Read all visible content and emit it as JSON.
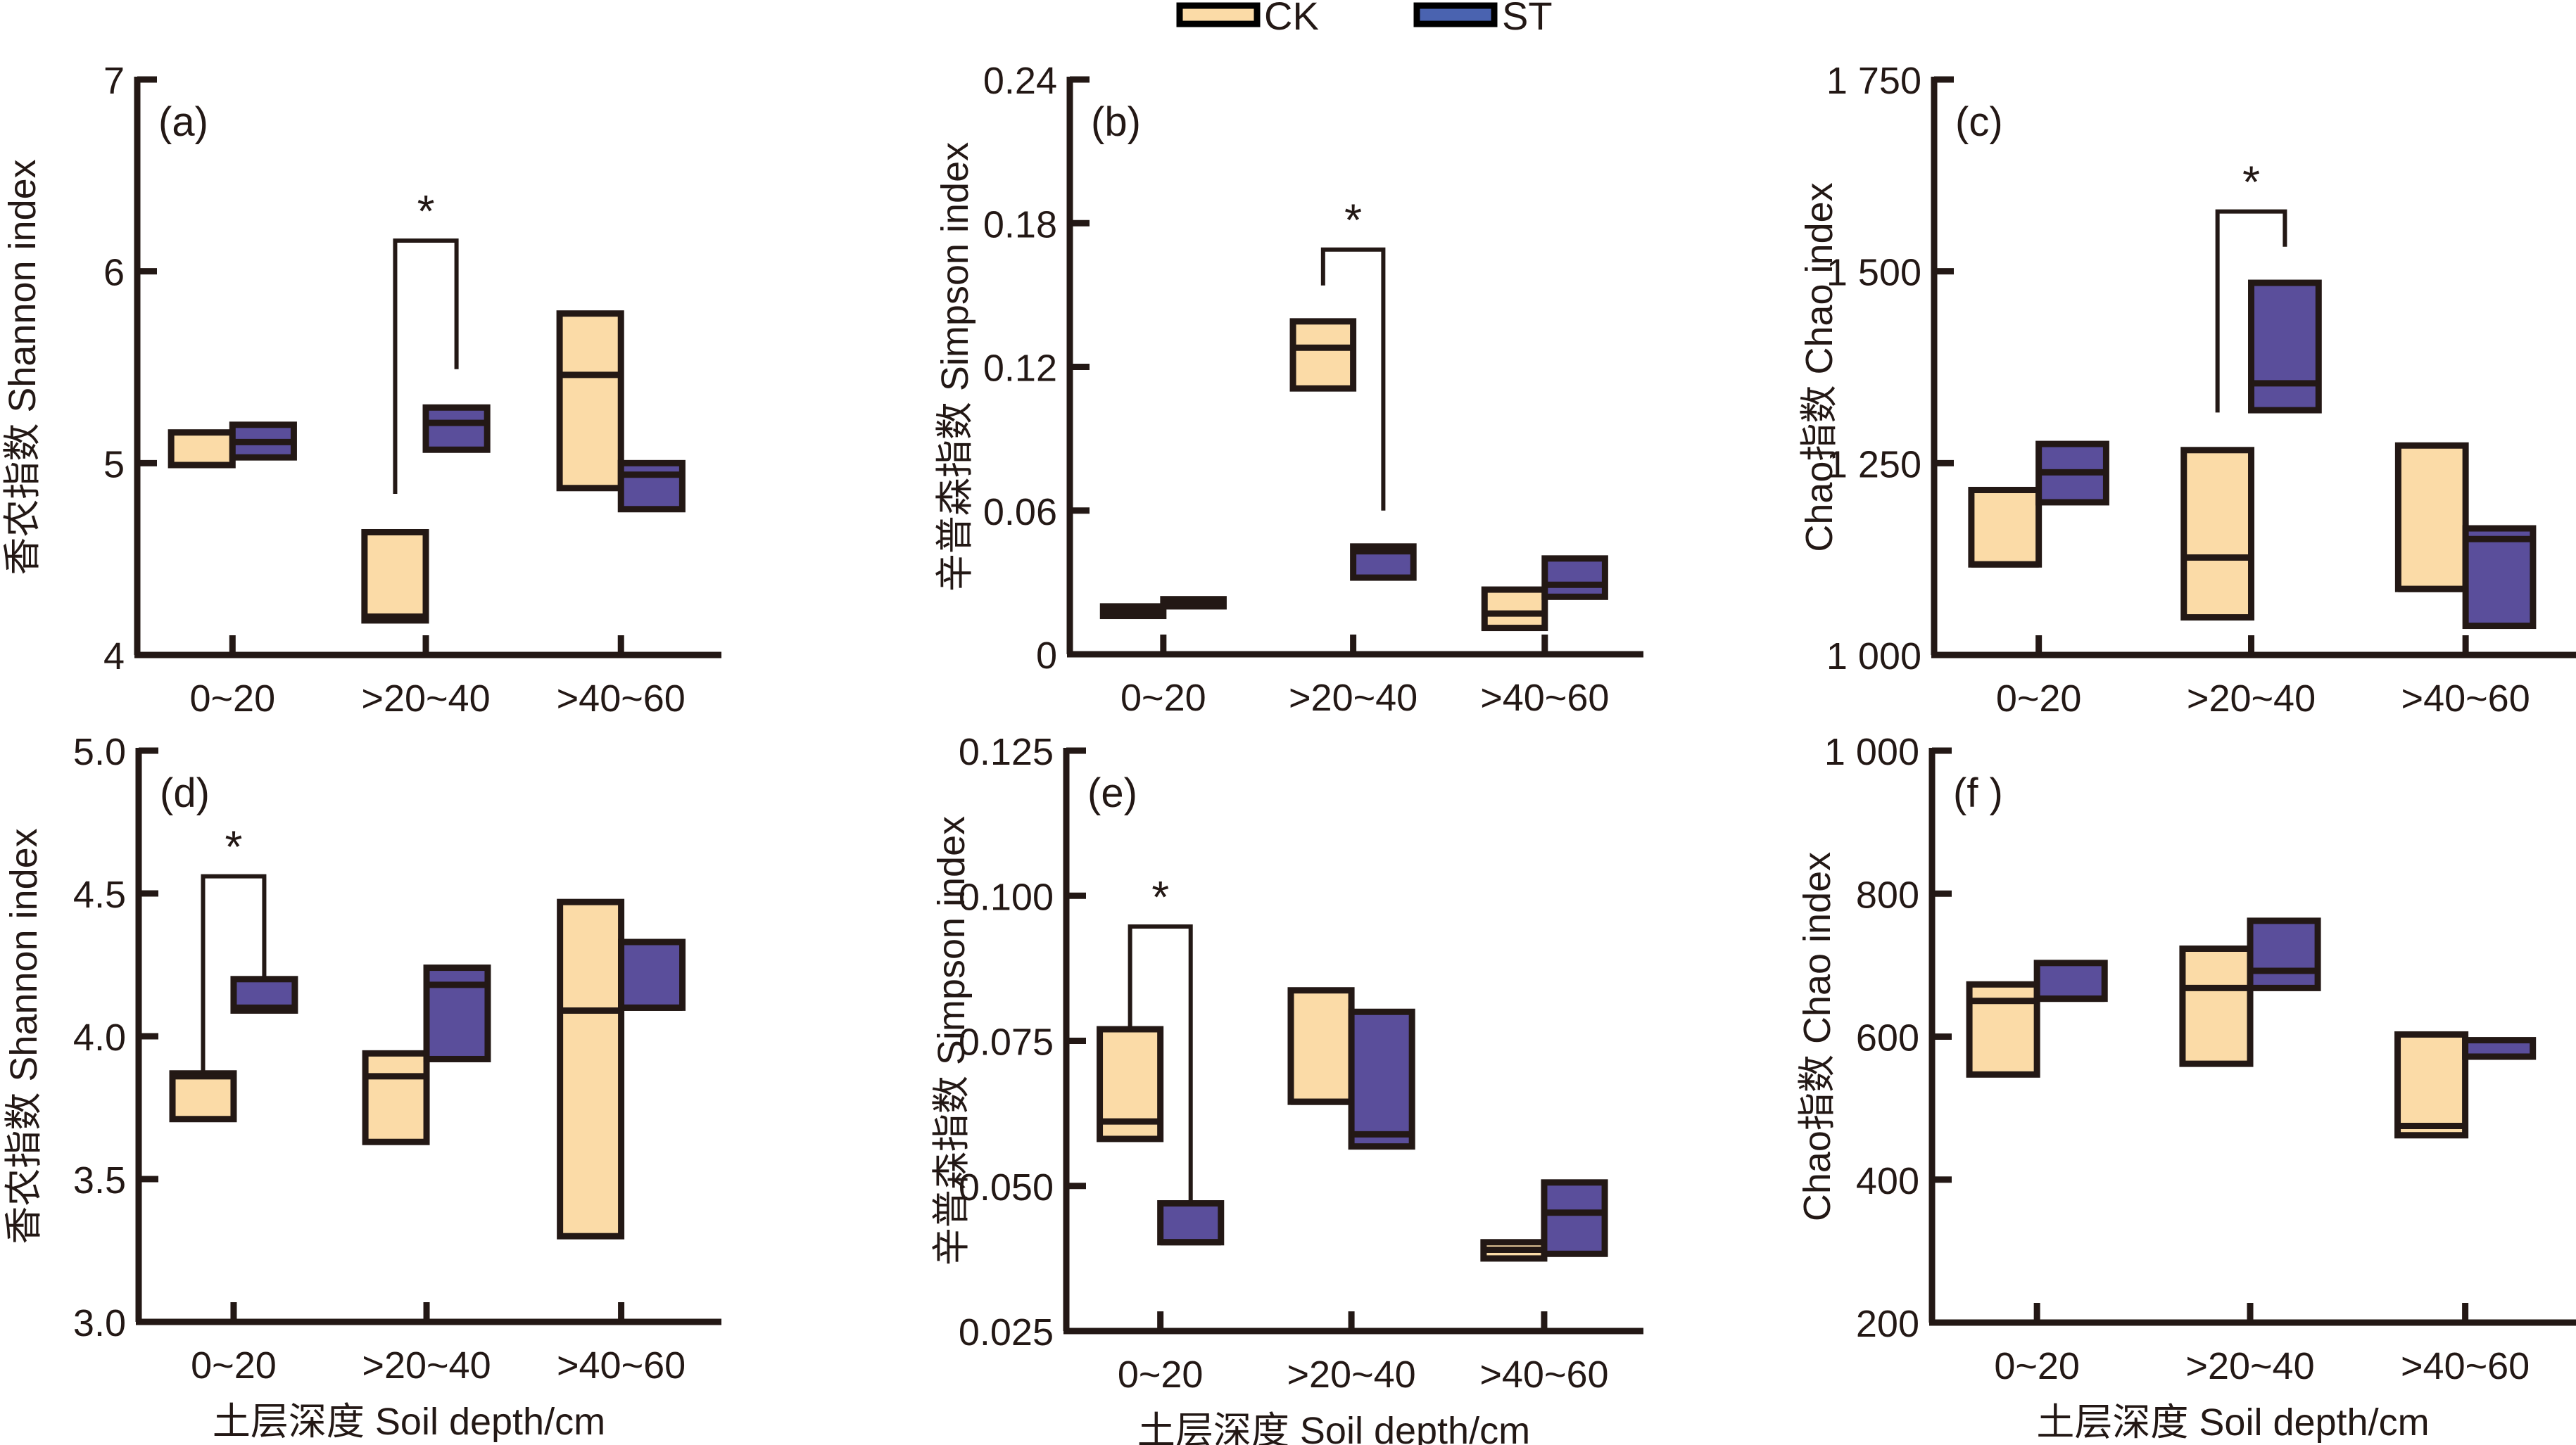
{
  "legend": {
    "items": [
      {
        "label": "CK",
        "fill": "#fbdba7"
      },
      {
        "label": "ST",
        "fill": "#4a63b0"
      }
    ]
  },
  "colors": {
    "ck": "#fbdba7",
    "st": "#5a4e9b",
    "ink": "#231815"
  },
  "chart_data": [
    {
      "panel": "(a)",
      "type": "box",
      "ylabel": "香农指数 Shannon index",
      "xlabel": "",
      "categories": [
        "0~20",
        ">20~40",
        ">40~60"
      ],
      "ylim": [
        4,
        7
      ],
      "yticks": [
        4,
        5,
        6,
        7
      ],
      "ytick_labels": [
        "4",
        "5",
        "6",
        "7"
      ],
      "series": [
        {
          "name": "CK",
          "boxes": [
            {
              "low": 4.99,
              "high": 5.16,
              "median": 4.99
            },
            {
              "low": 4.18,
              "high": 4.64,
              "median": 4.2
            },
            {
              "low": 4.87,
              "high": 5.78,
              "median": 5.46
            }
          ]
        },
        {
          "name": "ST",
          "boxes": [
            {
              "low": 5.03,
              "high": 5.2,
              "median": 5.11
            },
            {
              "low": 5.07,
              "high": 5.29,
              "median": 5.21
            },
            {
              "low": 4.76,
              "high": 5.0,
              "median": 4.94
            }
          ]
        }
      ],
      "significance": [
        {
          "category": ">20~40",
          "label": "*",
          "left_y": 4.84,
          "top_y": 6.16,
          "right_y": 5.49
        }
      ]
    },
    {
      "panel": "(b)",
      "type": "box",
      "ylabel": "辛普森指数 Simpson index",
      "xlabel": "",
      "categories": [
        "0~20",
        ">20~40",
        ">40~60"
      ],
      "ylim": [
        0,
        0.24
      ],
      "yticks": [
        0,
        0.06,
        0.12,
        0.18,
        0.24
      ],
      "ytick_labels": [
        "0",
        "0.06",
        "0.12",
        "0.18",
        "0.24"
      ],
      "series": [
        {
          "name": "CK",
          "boxes": [
            {
              "low": 0.016,
              "high": 0.02,
              "median": 0.018
            },
            {
              "low": 0.111,
              "high": 0.139,
              "median": 0.128
            },
            {
              "low": 0.011,
              "high": 0.027,
              "median": 0.017
            }
          ]
        },
        {
          "name": "ST",
          "boxes": [
            {
              "low": 0.02,
              "high": 0.023,
              "median": 0.0215
            },
            {
              "low": 0.032,
              "high": 0.045,
              "median": 0.043
            },
            {
              "low": 0.024,
              "high": 0.04,
              "median": 0.029
            }
          ]
        }
      ],
      "significance": [
        {
          "category": ">20~40",
          "label": "*",
          "left_y": 0.154,
          "top_y": 0.169,
          "right_y": 0.06
        }
      ]
    },
    {
      "panel": "(c)",
      "type": "box",
      "ylabel": "Chao指数 Chao index",
      "xlabel": "",
      "categories": [
        "0~20",
        ">20~40",
        ">40~60"
      ],
      "ylim": [
        1000,
        1750
      ],
      "yticks": [
        1000,
        1250,
        1500,
        1750
      ],
      "ytick_labels": [
        "1 000",
        "1 250",
        "1 500",
        "1 750"
      ],
      "series": [
        {
          "name": "CK",
          "boxes": [
            {
              "low": 1118,
              "high": 1215,
              "median": 1118
            },
            {
              "low": 1049,
              "high": 1267,
              "median": 1127
            },
            {
              "low": 1086,
              "high": 1273,
              "median": 1086
            }
          ]
        },
        {
          "name": "ST",
          "boxes": [
            {
              "low": 1199,
              "high": 1275,
              "median": 1238
            },
            {
              "low": 1319,
              "high": 1485,
              "median": 1354
            },
            {
              "low": 1038,
              "high": 1165,
              "median": 1151
            }
          ]
        }
      ],
      "significance": [
        {
          "category": ">20~40",
          "label": "*",
          "left_y": 1316,
          "top_y": 1578,
          "right_y": 1532
        }
      ]
    },
    {
      "panel": "(d)",
      "type": "box",
      "ylabel": "香农指数 Shannon index",
      "xlabel": "土层深度 Soil depth/cm",
      "categories": [
        "0~20",
        ">20~40",
        ">40~60"
      ],
      "ylim": [
        3.0,
        5.0
      ],
      "yticks": [
        3.0,
        3.5,
        4.0,
        4.5,
        5.0
      ],
      "ytick_labels": [
        "3.0",
        "3.5",
        "4.0",
        "4.5",
        "5.0"
      ],
      "series": [
        {
          "name": "CK",
          "boxes": [
            {
              "low": 3.71,
              "high": 3.87,
              "median": 3.86
            },
            {
              "low": 3.63,
              "high": 3.94,
              "median": 3.86
            },
            {
              "low": 3.3,
              "high": 4.47,
              "median": 4.09
            }
          ]
        },
        {
          "name": "ST",
          "boxes": [
            {
              "low": 4.09,
              "high": 4.2,
              "median": 4.1
            },
            {
              "low": 3.92,
              "high": 4.24,
              "median": 4.18
            },
            {
              "low": 4.1,
              "high": 4.33,
              "median": 4.1
            }
          ]
        }
      ],
      "significance": [
        {
          "category": "0~20",
          "label": "*",
          "left_y": 3.87,
          "top_y": 4.56,
          "right_y": 4.2
        }
      ]
    },
    {
      "panel": "(e)",
      "type": "box",
      "ylabel": "辛普森指数 Simpson index",
      "xlabel": "土层深度 Soil depth/cm",
      "categories": [
        "0~20",
        ">20~40",
        ">40~60"
      ],
      "ylim": [
        0.025,
        0.125
      ],
      "yticks": [
        0.025,
        0.05,
        0.075,
        0.1,
        0.125
      ],
      "ytick_labels": [
        "0.025",
        "0.050",
        "0.075",
        "0.100",
        "0.125"
      ],
      "series": [
        {
          "name": "CK",
          "boxes": [
            {
              "low": 0.0581,
              "high": 0.077,
              "median": 0.0611
            },
            {
              "low": 0.0645,
              "high": 0.0837,
              "median": 0.0645
            },
            {
              "low": 0.0375,
              "high": 0.0403,
              "median": 0.039
            }
          ]
        },
        {
          "name": "ST",
          "boxes": [
            {
              "low": 0.0403,
              "high": 0.047,
              "median": 0.0403
            },
            {
              "low": 0.0568,
              "high": 0.08,
              "median": 0.0589
            },
            {
              "low": 0.0383,
              "high": 0.0506,
              "median": 0.0454
            }
          ]
        }
      ],
      "significance": [
        {
          "category": "0~20",
          "label": "*",
          "left_y": 0.077,
          "top_y": 0.0947,
          "right_y": 0.047
        }
      ]
    },
    {
      "panel": "(f )",
      "type": "box",
      "ylabel": "Chao指数 Chao index",
      "xlabel": "土层深度 Soil depth/cm",
      "categories": [
        "0~20",
        ">20~40",
        ">40~60"
      ],
      "ylim": [
        200,
        1000
      ],
      "yticks": [
        200,
        400,
        600,
        800,
        1000
      ],
      "ytick_labels": [
        "200",
        "400",
        "600",
        "800",
        "1 000"
      ],
      "series": [
        {
          "name": "CK",
          "boxes": [
            {
              "low": 547,
              "high": 673,
              "median": 650
            },
            {
              "low": 562,
              "high": 723,
              "median": 668
            },
            {
              "low": 462,
              "high": 603,
              "median": 475
            }
          ]
        },
        {
          "name": "ST",
          "boxes": [
            {
              "low": 653,
              "high": 703,
              "median": 653
            },
            {
              "low": 668,
              "high": 762,
              "median": 692
            },
            {
              "low": 572,
              "high": 595,
              "median": 572
            }
          ]
        }
      ],
      "significance": []
    }
  ]
}
